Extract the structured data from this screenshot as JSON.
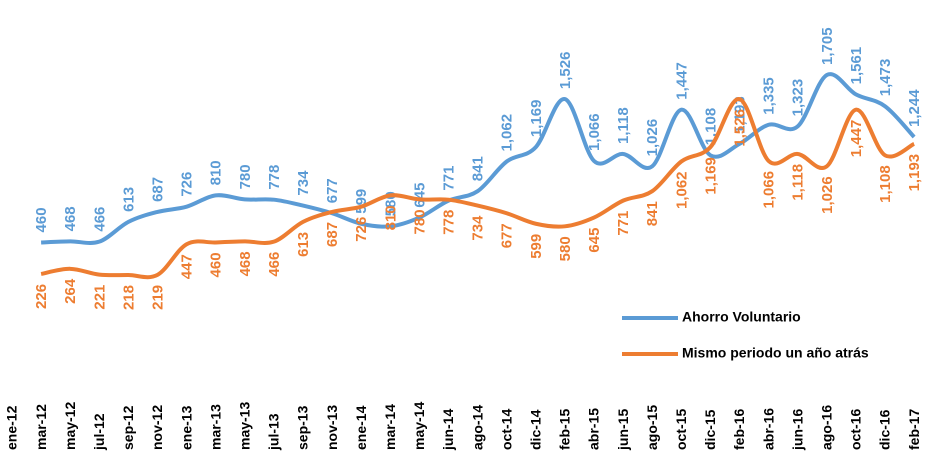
{
  "chart_data": {
    "type": "line",
    "categories": [
      "ene-12",
      "mar-12",
      "may-12",
      "jul-12",
      "sep-12",
      "nov-12",
      "ene-13",
      "mar-13",
      "may-13",
      "jul-13",
      "sep-13",
      "nov-13",
      "ene-14",
      "mar-14",
      "may-14",
      "jun-14",
      "ago-14",
      "oct-14",
      "dic-14",
      "feb-15",
      "abr-15",
      "jun-15",
      "ago-15",
      "oct-15",
      "dic-15",
      "feb-16",
      "abr-16",
      "jun-16",
      "ago-16",
      "oct-16",
      "dic-16",
      "feb-17"
    ],
    "series": [
      {
        "name": "Ahorro Voluntario",
        "color": "#5b9bd5",
        "values": [
          null,
          460,
          468,
          466,
          613,
          687,
          726,
          810,
          780,
          778,
          734,
          677,
          599,
          580,
          645,
          771,
          841,
          1062,
          1169,
          1526,
          1066,
          1118,
          1026,
          1447,
          1108,
          1193,
          1335,
          1323,
          1705,
          1561,
          1473,
          1244
        ],
        "value_labels": [
          null,
          "460",
          "468",
          "466",
          "613",
          "687",
          "726",
          "810",
          "780",
          "778",
          "734",
          "677",
          "599",
          "580",
          "645",
          "771",
          "841",
          "1,062",
          "1,169",
          "1,526",
          "1,066",
          "1,118",
          "1,026",
          "1,447",
          "1,108",
          "1,193",
          "1,335",
          "1,323",
          "1,705",
          "1,561",
          "1,473",
          "1,244"
        ]
      },
      {
        "name": "Mismo periodo un año atrás",
        "color": "#ed7d31",
        "values": [
          null,
          226,
          264,
          221,
          218,
          219,
          447,
          460,
          468,
          466,
          613,
          687,
          726,
          810,
          780,
          778,
          734,
          677,
          599,
          580,
          645,
          771,
          841,
          1062,
          1169,
          1526,
          1066,
          1118,
          1026,
          1447,
          1108,
          1193
        ],
        "value_labels": [
          null,
          "226",
          "264",
          "221",
          "218",
          "219",
          "447",
          "460",
          "468",
          "466",
          "613",
          "687",
          "726",
          "810",
          "780",
          "778",
          "734",
          "677",
          "599",
          "580",
          "645",
          "771",
          "841",
          "1,062",
          "1,169",
          "1,526",
          "1,066",
          "1,118",
          "1,026",
          "1,447",
          "1,108",
          "1,193"
        ]
      }
    ],
    "legend": "lower right"
  }
}
